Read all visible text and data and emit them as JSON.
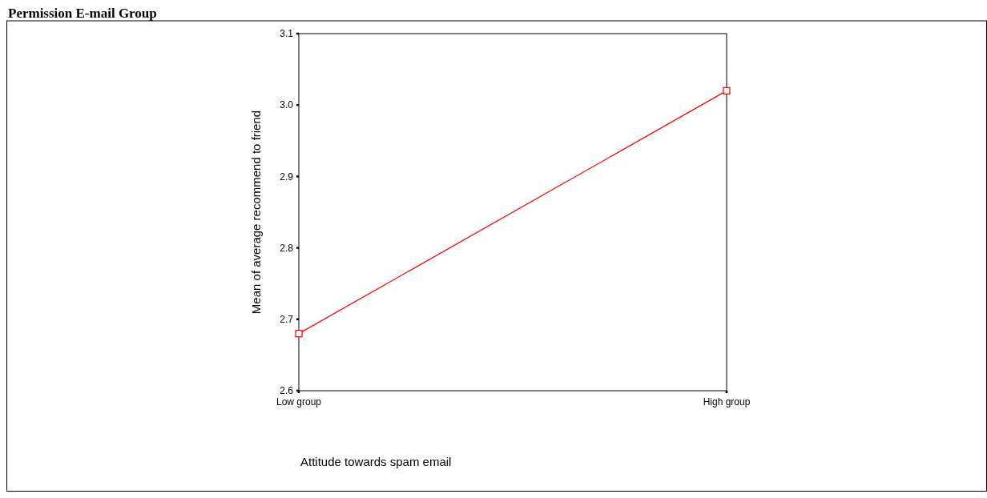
{
  "chart_data": {
    "type": "line",
    "title": "Permission E-mail Group",
    "xlabel": "Attitude towards spam email",
    "ylabel": "Mean of average recommend to friend",
    "categories": [
      "Low group",
      "High group"
    ],
    "series": [
      {
        "color": "#ff0000",
        "values": [
          2.68,
          3.02
        ]
      }
    ],
    "ylim": [
      2.6,
      3.1
    ],
    "yticks": [
      {
        "value": 2.6,
        "label": "2.6"
      },
      {
        "value": 2.7,
        "label": "2.7"
      },
      {
        "value": 2.8,
        "label": "2.8"
      },
      {
        "value": 2.9,
        "label": "2.9"
      },
      {
        "value": 3.0,
        "label": "3.0"
      },
      {
        "value": 3.1,
        "label": "3.1"
      }
    ],
    "marker": "square",
    "line_style": "solid",
    "grid": false
  }
}
